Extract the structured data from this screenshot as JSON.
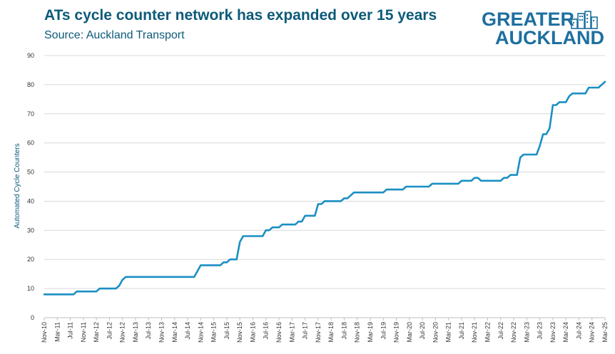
{
  "header": {
    "title": "ATs cycle counter network has expanded over 15 years",
    "subtitle": "Source: Auckland Transport"
  },
  "logo": {
    "line1": "GREATER",
    "line2": "AUCKLAND",
    "icon": "city-buildings-icon",
    "color": "#1e6fa0"
  },
  "chart_data": {
    "type": "line",
    "title": "ATs cycle counter network has expanded over 15 years",
    "subtitle": "Source: Auckland Transport",
    "xlabel": "",
    "ylabel": "Automated Cycle Counters",
    "ylim": [
      0,
      90
    ],
    "yticks": [
      0,
      10,
      20,
      30,
      40,
      50,
      60,
      70,
      80,
      90
    ],
    "grid": true,
    "line_color": "#1a8fc4",
    "xtick_labels": [
      "Nov-10",
      "Mar-11",
      "Jul-11",
      "Nov-11",
      "Mar-12",
      "Jul-12",
      "Nov-12",
      "Mar-13",
      "Jul-13",
      "Nov-13",
      "Mar-14",
      "Jul-14",
      "Nov-14",
      "Mar-15",
      "Jul-15",
      "Nov-15",
      "Mar-16",
      "Jul-16",
      "Nov-16",
      "Mar-17",
      "Jul-17",
      "Nov-17",
      "Mar-18",
      "Jul-18",
      "Nov-18",
      "Mar-19",
      "Jul-19",
      "Nov-19",
      "Mar-20",
      "Jul-20",
      "Nov-20",
      "Mar-21",
      "Jul-21",
      "Nov-21",
      "Mar-22",
      "Jul-22",
      "Nov-22",
      "Mar-23",
      "Jul-23",
      "Nov-23",
      "Mar-24",
      "Jul-24",
      "Nov-24",
      "Mar-25"
    ],
    "series": [
      {
        "points": [
          [
            "Nov-10",
            8
          ],
          [
            "Jul-11",
            8
          ],
          [
            "Aug-11",
            8
          ],
          [
            "Sep-11",
            9
          ],
          [
            "Nov-11",
            9
          ],
          [
            "Mar-12",
            9
          ],
          [
            "Apr-12",
            10
          ],
          [
            "Jul-12",
            10
          ],
          [
            "Sep-12",
            10
          ],
          [
            "Oct-12",
            11
          ],
          [
            "Nov-12",
            13
          ],
          [
            "Dec-12",
            14
          ],
          [
            "Mar-13",
            14
          ],
          [
            "Jul-13",
            14
          ],
          [
            "Nov-13",
            14
          ],
          [
            "Mar-14",
            14
          ],
          [
            "Jul-14",
            14
          ],
          [
            "Sep-14",
            14
          ],
          [
            "Nov-14",
            18
          ],
          [
            "Mar-15",
            18
          ],
          [
            "May-15",
            18
          ],
          [
            "Jun-15",
            19
          ],
          [
            "Jul-15",
            19
          ],
          [
            "Aug-15",
            20
          ],
          [
            "Oct-15",
            20
          ],
          [
            "Nov-15",
            26
          ],
          [
            "Dec-15",
            28
          ],
          [
            "Mar-16",
            28
          ],
          [
            "Jun-16",
            28
          ],
          [
            "Jul-16",
            30
          ],
          [
            "Aug-16",
            30
          ],
          [
            "Sep-16",
            31
          ],
          [
            "Nov-16",
            31
          ],
          [
            "Dec-16",
            32
          ],
          [
            "Mar-17",
            32
          ],
          [
            "Apr-17",
            32
          ],
          [
            "May-17",
            33
          ],
          [
            "Jun-17",
            33
          ],
          [
            "Jul-17",
            35
          ],
          [
            "Oct-17",
            35
          ],
          [
            "Nov-17",
            39
          ],
          [
            "Dec-17",
            39
          ],
          [
            "Jan-18",
            40
          ],
          [
            "Jun-18",
            40
          ],
          [
            "Jul-18",
            41
          ],
          [
            "Aug-18",
            41
          ],
          [
            "Sep-18",
            42
          ],
          [
            "Oct-18",
            43
          ],
          [
            "Jul-19",
            43
          ],
          [
            "Aug-19",
            44
          ],
          [
            "Jan-20",
            44
          ],
          [
            "Feb-20",
            45
          ],
          [
            "Jul-20",
            45
          ],
          [
            "Sep-20",
            45
          ],
          [
            "Oct-20",
            46
          ],
          [
            "Feb-21",
            46
          ],
          [
            "Jun-21",
            46
          ],
          [
            "Jul-21",
            47
          ],
          [
            "Oct-21",
            47
          ],
          [
            "Nov-21",
            48
          ],
          [
            "Dec-21",
            48
          ],
          [
            "Jan-22",
            47
          ],
          [
            "Jul-22",
            47
          ],
          [
            "Aug-22",
            48
          ],
          [
            "Sep-22",
            48
          ],
          [
            "Oct-22",
            49
          ],
          [
            "Dec-22",
            49
          ],
          [
            "Jan-23",
            55
          ],
          [
            "Feb-23",
            56
          ],
          [
            "Jun-23",
            56
          ],
          [
            "Jul-23",
            59
          ],
          [
            "Aug-23",
            63
          ],
          [
            "Sep-23",
            63
          ],
          [
            "Oct-23",
            65
          ],
          [
            "Nov-23",
            73
          ],
          [
            "Dec-23",
            73
          ],
          [
            "Jan-24",
            74
          ],
          [
            "Mar-24",
            74
          ],
          [
            "Apr-24",
            76
          ],
          [
            "May-24",
            77
          ],
          [
            "Sep-24",
            77
          ],
          [
            "Oct-24",
            79
          ],
          [
            "Jan-25",
            79
          ],
          [
            "Feb-25",
            80
          ],
          [
            "Mar-25",
            81
          ]
        ]
      }
    ]
  }
}
